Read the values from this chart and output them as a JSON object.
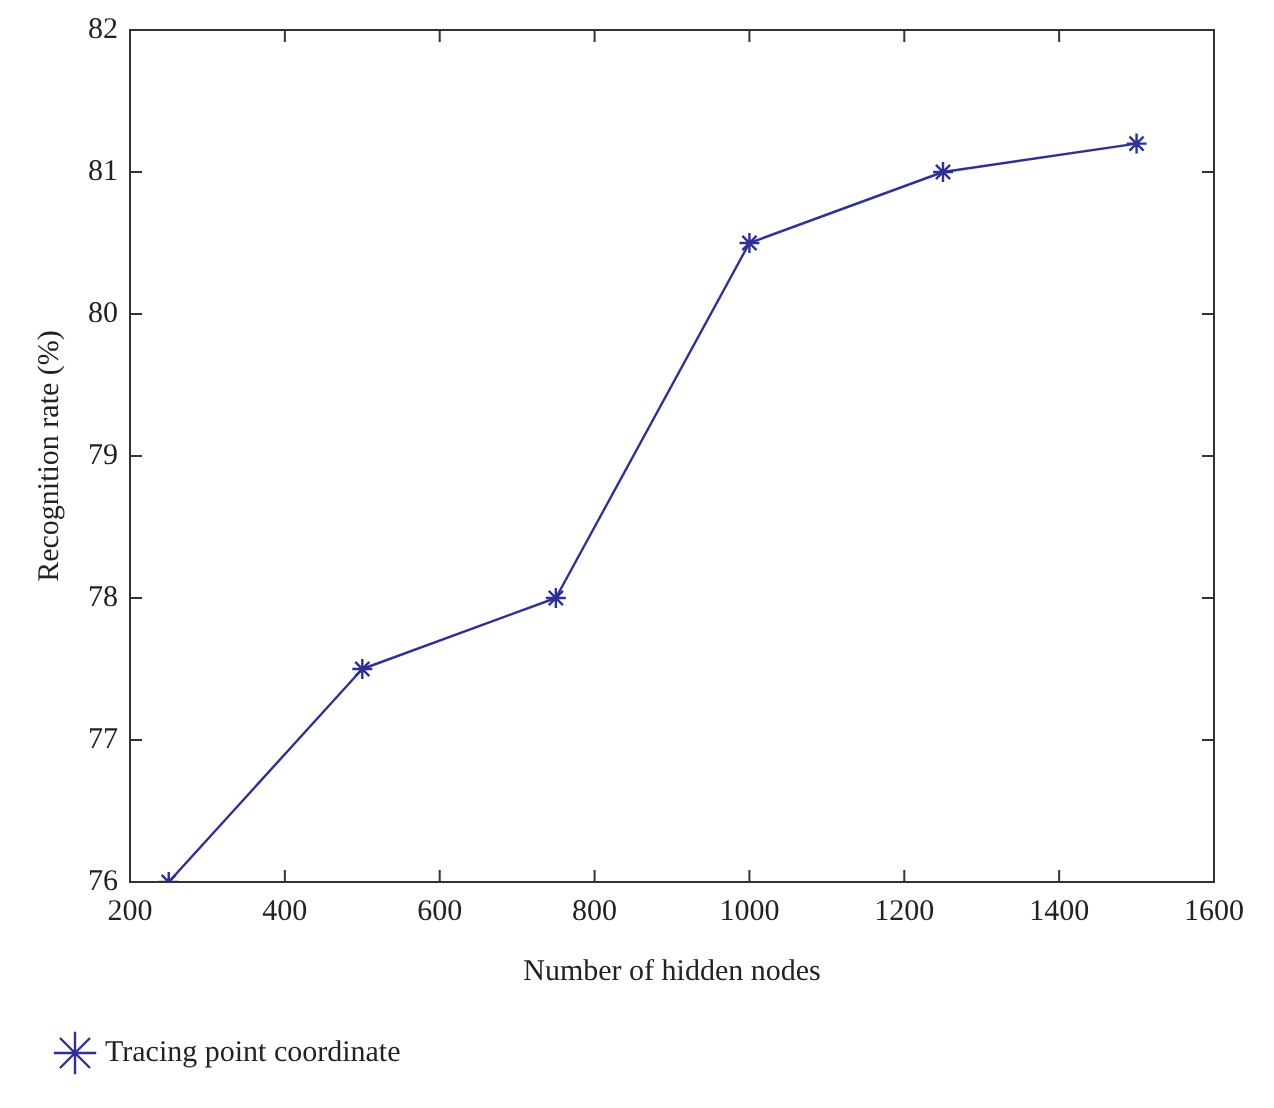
{
  "chart_data": {
    "type": "line",
    "xlabel": "Number of hidden nodes",
    "ylabel": "Recognition rate (%)",
    "x": [
      250,
      500,
      750,
      1000,
      1250,
      1500
    ],
    "series": [
      {
        "name": "Tracing point coordinate",
        "color": "#2e3192",
        "values": [
          76,
          77.5,
          78,
          80.5,
          81,
          81.2
        ]
      }
    ],
    "xlim": [
      200,
      1600
    ],
    "xticks": [
      200,
      400,
      600,
      800,
      1000,
      1200,
      1400,
      1600
    ],
    "ylim": [
      76,
      82
    ],
    "yticks": [
      76,
      77,
      78,
      79,
      80,
      81,
      82
    ],
    "grid": false,
    "legend": "bottom",
    "marker": "cross",
    "line_style": "solid"
  }
}
